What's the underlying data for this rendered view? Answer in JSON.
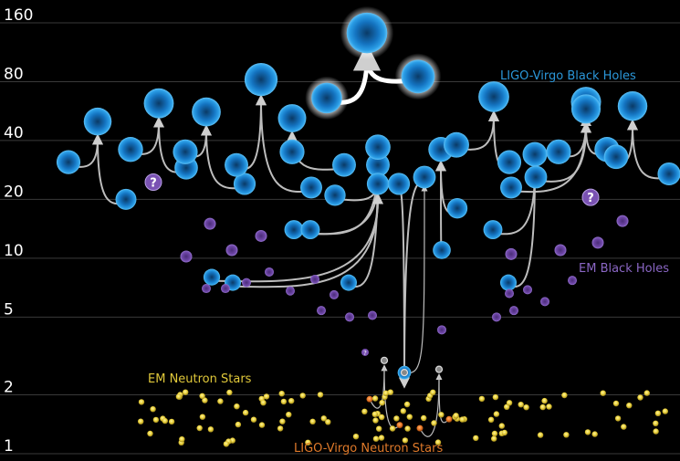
{
  "chart_data": {
    "type": "scatter",
    "title": "",
    "xlabel": "",
    "ylabel": "",
    "y_scale": "log",
    "ylim": [
      1,
      160
    ],
    "yticks": [
      "1",
      "2",
      "5",
      "10",
      "20",
      "40",
      "80",
      "160"
    ],
    "grid": true,
    "labels": {
      "ligo_bh": "LIGO-Virgo Black Holes",
      "em_bh": "EM Black Holes",
      "em_ns": "EM Neutron Stars",
      "ligo_ns": "LIGO-Virgo Neutron Stars"
    },
    "colors": {
      "ligo_bh": "#1e90d8",
      "em_bh": "#7a52b3",
      "em_ns": "#e8cf3c",
      "ligo_ns": "#e2701d",
      "label_ligo_bh": "#2b97d9",
      "label_em_bh": "#8a66c4",
      "label_em_ns": "#e0c83a",
      "label_ligo_ns": "#e07a2a"
    },
    "unknown_marker": "?",
    "mergers": [
      {
        "m1": 31,
        "m2": 20,
        "final": 50
      },
      {
        "m1": 36,
        "m2": 29,
        "final": 62
      },
      {
        "m1": 35,
        "m2": 24,
        "final": 56
      },
      {
        "m1": 30,
        "m2": 23,
        "final": 82
      },
      {
        "m1": 35,
        "m2": 30,
        "final": 52
      },
      {
        "m1": 66,
        "m2": 85,
        "final": 142
      },
      {
        "m1": 21,
        "m2": 14,
        "final": 30
      },
      {
        "m1": 14,
        "m2": 7.5,
        "final": 37
      },
      {
        "m1": 8,
        "m2": 7.5,
        "final": 24
      },
      {
        "m1": 24,
        "m2": 26,
        "final": 2.6
      },
      {
        "m1": 11,
        "m2": 18,
        "final": 36
      },
      {
        "m1": 38,
        "m2": 31,
        "final": 67
      },
      {
        "m1": 14,
        "m2": 7.5,
        "final": 34
      },
      {
        "m1": 23,
        "m2": 35,
        "final": 63
      },
      {
        "m1": 26,
        "m2": 36,
        "final": 58
      },
      {
        "m1": 33,
        "m2": 27,
        "final": 60
      }
    ],
    "ligo_ns_mergers": [
      {
        "m1": 1.9,
        "m2": 1.4,
        "final": 3.0
      },
      {
        "m1": 1.35,
        "m2": 1.5,
        "final": 2.7
      }
    ]
  }
}
